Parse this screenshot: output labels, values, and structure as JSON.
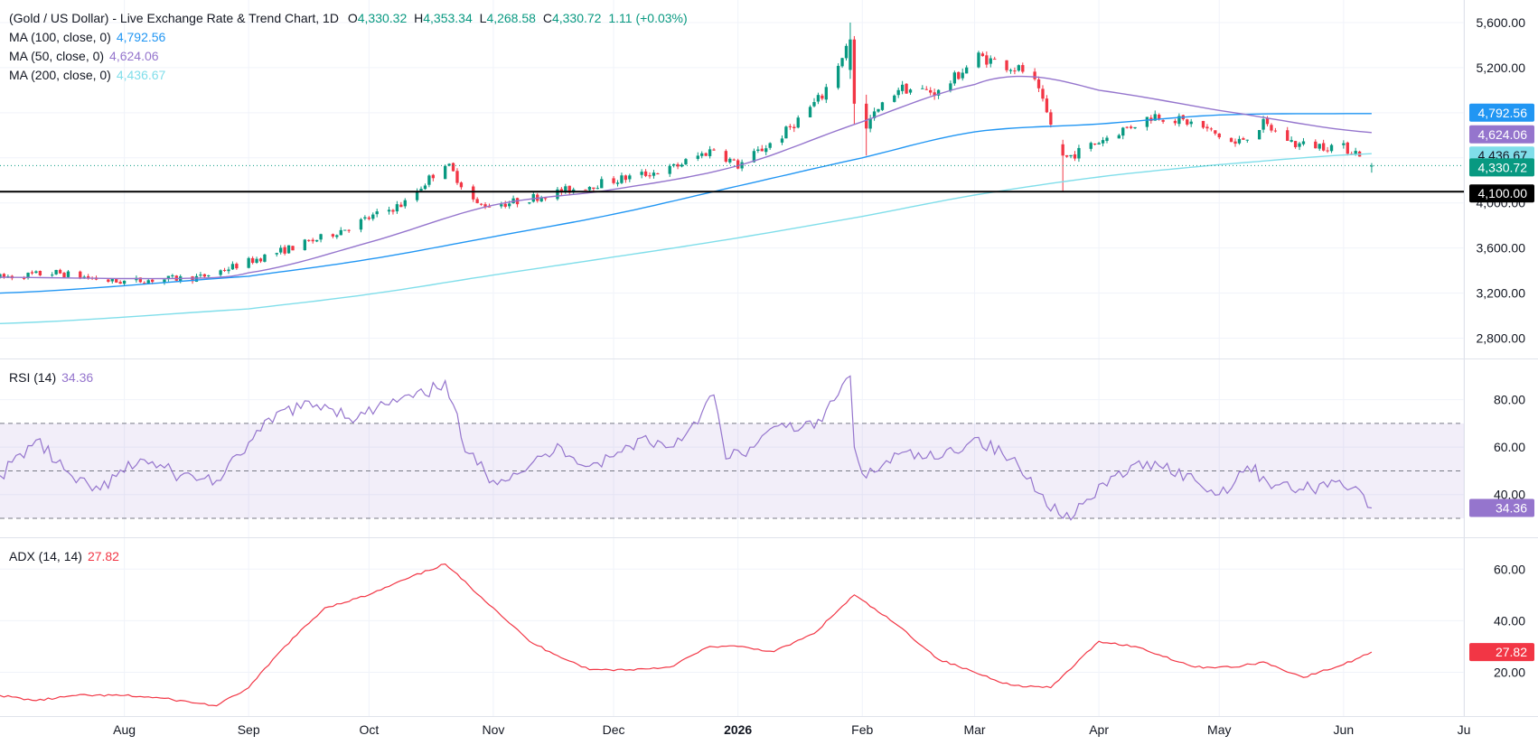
{
  "chart_data": [
    {
      "type": "candlestick",
      "title": "(Gold / US Dollar) - Live Exchange Rate & Trend Chart",
      "timeframe": "1D",
      "ohlc": {
        "open_label": "O",
        "open": "4,330.32",
        "high_label": "H",
        "high": "4,353.34",
        "low_label": "L",
        "low": "4,268.58",
        "close_label": "C",
        "close": "4,330.72",
        "change": "1.11 (+0.03%)"
      },
      "y_ticks": [
        "5,600.00",
        "5,200.00",
        "4,800.00",
        "4,400.00",
        "4,000.00",
        "3,600.00",
        "3,200.00",
        "2,800.00"
      ],
      "y_tick_values": [
        5600,
        5200,
        4800,
        4400,
        4000,
        3600,
        3200,
        2800
      ],
      "ylim": [
        2620,
        5800
      ],
      "x_ticks": [
        {
          "label": "Aug",
          "date": "2025-08-01",
          "bold": false
        },
        {
          "label": "Sep",
          "date": "2025-09-01",
          "bold": false
        },
        {
          "label": "Oct",
          "date": "2025-10-01",
          "bold": false
        },
        {
          "label": "Nov",
          "date": "2025-11-01",
          "bold": false
        },
        {
          "label": "Dec",
          "date": "2025-12-01",
          "bold": false
        },
        {
          "label": "2026",
          "date": "2026-01-01",
          "bold": true
        },
        {
          "label": "Feb",
          "date": "2026-02-01",
          "bold": false
        },
        {
          "label": "Mar",
          "date": "2026-03-01",
          "bold": false
        },
        {
          "label": "Apr",
          "date": "2026-04-01",
          "bold": false
        },
        {
          "label": "May",
          "date": "2026-05-01",
          "bold": false
        },
        {
          "label": "Jun",
          "date": "2026-06-01",
          "bold": false
        },
        {
          "label": "Ju",
          "date": "2026-07-01",
          "bold": false
        }
      ],
      "xlim": [
        "2025-07-01",
        "2026-07-01"
      ],
      "support_level": {
        "value": 4100,
        "label": "4,100.00"
      },
      "price_line": {
        "value": 4330.72,
        "label": "4,330.72",
        "color": "#089981"
      },
      "price_anchors": [
        [
          "2025-07-01",
          3340
        ],
        [
          "2025-07-15",
          3380
        ],
        [
          "2025-07-30",
          3300
        ],
        [
          "2025-08-20",
          3340
        ],
        [
          "2025-09-01",
          3480
        ],
        [
          "2025-09-20",
          3700
        ],
        [
          "2025-10-10",
          4000
        ],
        [
          "2025-10-20",
          4360
        ],
        [
          "2025-10-28",
          3980
        ],
        [
          "2025-11-05",
          4000
        ],
        [
          "2025-11-15",
          4080
        ],
        [
          "2025-12-01",
          4200
        ],
        [
          "2025-12-15",
          4300
        ],
        [
          "2025-12-26",
          4480
        ],
        [
          "2026-01-01",
          4330
        ],
        [
          "2026-01-12",
          4600
        ],
        [
          "2026-01-22",
          4950
        ],
        [
          "2026-01-29",
          5450
        ],
        [
          "2026-02-02",
          4700
        ],
        [
          "2026-02-10",
          5020
        ],
        [
          "2026-02-20",
          4980
        ],
        [
          "2026-03-02",
          5300
        ],
        [
          "2026-03-15",
          5150
        ],
        [
          "2026-03-20",
          4700
        ],
        [
          "2026-03-24",
          4400
        ],
        [
          "2026-04-05",
          4620
        ],
        [
          "2026-04-15",
          4780
        ],
        [
          "2026-04-25",
          4700
        ],
        [
          "2026-05-05",
          4520
        ],
        [
          "2026-05-12",
          4700
        ],
        [
          "2026-05-20",
          4520
        ],
        [
          "2026-05-31",
          4500
        ],
        [
          "2026-06-05",
          4440
        ],
        [
          "2026-06-08",
          4330
        ]
      ],
      "special_candles": [
        {
          "date": "2026-01-29",
          "open": 5180,
          "high": 5600,
          "low": 5100,
          "close": 5450
        },
        {
          "date": "2026-01-30",
          "open": 5450,
          "high": 5480,
          "low": 4700,
          "close": 4880
        },
        {
          "date": "2026-02-02",
          "open": 4880,
          "high": 4960,
          "low": 4420,
          "close": 4660
        },
        {
          "date": "2026-03-23",
          "open": 4520,
          "high": 4560,
          "low": 4100,
          "close": 4420
        },
        {
          "date": "2026-06-08",
          "open": 4330.32,
          "high": 4353.34,
          "low": 4268.58,
          "close": 4330.72
        }
      ],
      "series": [
        {
          "name": "MA (100, close, 0)",
          "value": "4,792.56",
          "color": "#2196f3",
          "points": [
            [
              "2025-07-01",
              3200
            ],
            [
              "2025-09-01",
              3350
            ],
            [
              "2025-10-01",
              3500
            ],
            [
              "2025-11-01",
              3700
            ],
            [
              "2025-12-01",
              3900
            ],
            [
              "2026-01-01",
              4150
            ],
            [
              "2026-02-01",
              4400
            ],
            [
              "2026-03-01",
              4630
            ],
            [
              "2026-04-01",
              4700
            ],
            [
              "2026-05-01",
              4780
            ],
            [
              "2026-06-08",
              4792.56
            ]
          ]
        },
        {
          "name": "MA (50, close, 0)",
          "value": "4,624.06",
          "color": "#9575cd",
          "points": [
            [
              "2025-07-01",
              3340
            ],
            [
              "2025-08-15",
              3330
            ],
            [
              "2025-09-01",
              3380
            ],
            [
              "2025-10-01",
              3650
            ],
            [
              "2025-11-01",
              3980
            ],
            [
              "2025-12-01",
              4120
            ],
            [
              "2026-01-01",
              4330
            ],
            [
              "2026-02-01",
              4720
            ],
            [
              "2026-03-01",
              5050
            ],
            [
              "2026-03-15",
              5120
            ],
            [
              "2026-04-01",
              5000
            ],
            [
              "2026-05-01",
              4820
            ],
            [
              "2026-06-08",
              4624.06
            ]
          ]
        },
        {
          "name": "MA (200, close, 0)",
          "value": "4,436.67",
          "color": "#80deea",
          "points": [
            [
              "2025-07-01",
              2930
            ],
            [
              "2025-09-01",
              3060
            ],
            [
              "2025-10-01",
              3190
            ],
            [
              "2025-11-01",
              3360
            ],
            [
              "2025-12-01",
              3520
            ],
            [
              "2026-01-01",
              3690
            ],
            [
              "2026-02-01",
              3880
            ],
            [
              "2026-03-01",
              4070
            ],
            [
              "2026-04-01",
              4230
            ],
            [
              "2026-05-01",
              4340
            ],
            [
              "2026-06-08",
              4436.67
            ]
          ]
        }
      ]
    },
    {
      "type": "line",
      "title": "RSI (14)",
      "value": "34.36",
      "color": "#9575cd",
      "y_ticks": [
        "80.00",
        "60.00",
        "40.00"
      ],
      "y_tick_values": [
        80,
        60,
        40
      ],
      "ylim": [
        22,
        97
      ],
      "band": [
        30,
        70
      ],
      "midline": 50,
      "points": [
        [
          "2025-07-01",
          48
        ],
        [
          "2025-07-10",
          63
        ],
        [
          "2025-07-20",
          45
        ],
        [
          "2025-07-26",
          42
        ],
        [
          "2025-08-05",
          55
        ],
        [
          "2025-08-15",
          48
        ],
        [
          "2025-08-25",
          46
        ],
        [
          "2025-09-01",
          62
        ],
        [
          "2025-09-10",
          76
        ],
        [
          "2025-09-20",
          78
        ],
        [
          "2025-09-28",
          72
        ],
        [
          "2025-10-05",
          78
        ],
        [
          "2025-10-15",
          82
        ],
        [
          "2025-10-20",
          88
        ],
        [
          "2025-10-22",
          78
        ],
        [
          "2025-10-25",
          58
        ],
        [
          "2025-11-01",
          46
        ],
        [
          "2025-11-10",
          52
        ],
        [
          "2025-11-18",
          60
        ],
        [
          "2025-11-25",
          52
        ],
        [
          "2025-12-01",
          56
        ],
        [
          "2025-12-08",
          64
        ],
        [
          "2025-12-15",
          60
        ],
        [
          "2025-12-20",
          68
        ],
        [
          "2025-12-26",
          82
        ],
        [
          "2025-12-29",
          55
        ],
        [
          "2026-01-05",
          60
        ],
        [
          "2026-01-12",
          70
        ],
        [
          "2026-01-20",
          68
        ],
        [
          "2026-01-26",
          82
        ],
        [
          "2026-01-29",
          90
        ],
        [
          "2026-01-30",
          60
        ],
        [
          "2026-02-02",
          47
        ],
        [
          "2026-02-10",
          57
        ],
        [
          "2026-02-20",
          55
        ],
        [
          "2026-03-01",
          64
        ],
        [
          "2026-03-10",
          55
        ],
        [
          "2026-03-18",
          40
        ],
        [
          "2026-03-23",
          30
        ],
        [
          "2026-03-30",
          38
        ],
        [
          "2026-04-05",
          48
        ],
        [
          "2026-04-15",
          54
        ],
        [
          "2026-04-25",
          46
        ],
        [
          "2026-05-01",
          40
        ],
        [
          "2026-05-08",
          52
        ],
        [
          "2026-05-15",
          44
        ],
        [
          "2026-05-22",
          42
        ],
        [
          "2026-05-31",
          46
        ],
        [
          "2026-06-05",
          42
        ],
        [
          "2026-06-08",
          34.36
        ]
      ]
    },
    {
      "type": "line",
      "title": "ADX (14, 14)",
      "value": "27.82",
      "color": "#f23645",
      "y_ticks": [
        "60.00",
        "40.00",
        "20.00"
      ],
      "y_tick_values": [
        60,
        40,
        20
      ],
      "ylim": [
        3,
        72
      ],
      "points": [
        [
          "2025-07-01",
          11
        ],
        [
          "2025-07-10",
          9
        ],
        [
          "2025-07-20",
          11
        ],
        [
          "2025-08-01",
          11
        ],
        [
          "2025-08-10",
          10
        ],
        [
          "2025-08-24",
          7
        ],
        [
          "2025-09-01",
          14
        ],
        [
          "2025-09-10",
          30
        ],
        [
          "2025-09-20",
          45
        ],
        [
          "2025-10-01",
          50
        ],
        [
          "2025-10-10",
          56
        ],
        [
          "2025-10-20",
          62
        ],
        [
          "2025-11-01",
          45
        ],
        [
          "2025-11-10",
          32
        ],
        [
          "2025-11-15",
          28
        ],
        [
          "2025-11-25",
          21
        ],
        [
          "2025-12-05",
          21
        ],
        [
          "2025-12-15",
          22
        ],
        [
          "2025-12-25",
          30
        ],
        [
          "2026-01-01",
          30
        ],
        [
          "2026-01-10",
          28
        ],
        [
          "2026-01-20",
          35
        ],
        [
          "2026-01-30",
          50
        ],
        [
          "2026-02-10",
          38
        ],
        [
          "2026-02-20",
          25
        ],
        [
          "2026-03-01",
          20
        ],
        [
          "2026-03-10",
          15
        ],
        [
          "2026-03-20",
          14
        ],
        [
          "2026-04-01",
          32
        ],
        [
          "2026-04-10",
          30
        ],
        [
          "2026-04-25",
          22
        ],
        [
          "2026-05-05",
          22
        ],
        [
          "2026-05-12",
          24
        ],
        [
          "2026-05-22",
          18
        ],
        [
          "2026-06-01",
          23
        ],
        [
          "2026-06-08",
          27.82
        ]
      ]
    }
  ]
}
